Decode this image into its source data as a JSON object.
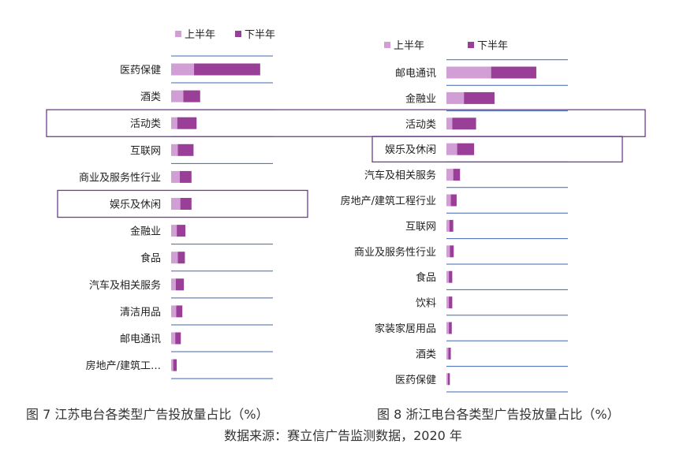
{
  "colors": {
    "first_half": "#d29ed6",
    "second_half": "#9a3f98",
    "grid": "#3f66b3",
    "highlight_box": "#6d3d8f",
    "text": "#222222"
  },
  "chart_data": [
    {
      "type": "bar",
      "orientation": "horizontal",
      "stacked": true,
      "title": "",
      "legend": [
        "上半年",
        "下半年"
      ],
      "categories": [
        "医药保健",
        "酒类",
        "活动类",
        "互联网",
        "商业及服务性行业",
        "娱乐及休闲",
        "金融业",
        "食品",
        "汽车及相关服务",
        "清洁用品",
        "邮电通讯",
        "房地产/建筑工…"
      ],
      "series": [
        {
          "name": "上半年",
          "values": [
            4.5,
            2.4,
            1.2,
            1.3,
            1.7,
            1.8,
            1.1,
            1.3,
            0.9,
            1.0,
            0.8,
            0.4
          ]
        },
        {
          "name": "下半年",
          "values": [
            13.0,
            3.3,
            3.8,
            3.1,
            2.3,
            2.2,
            1.7,
            1.4,
            1.6,
            1.2,
            1.1,
            0.7
          ]
        }
      ],
      "xlim": [
        0,
        20
      ],
      "highlight": [
        "活动类",
        "娱乐及休闲"
      ],
      "caption": "图 7  江苏电台各类型广告投放量占比（%）"
    },
    {
      "type": "bar",
      "orientation": "horizontal",
      "stacked": true,
      "title": "",
      "legend": [
        "上半年",
        "下半年"
      ],
      "categories": [
        "邮电通讯",
        "金融业",
        "活动类",
        "娱乐及休闲",
        "汽车及相关服务",
        "房地产/建筑工程行业",
        "互联网",
        "商业及服务性行业",
        "食品",
        "饮料",
        "家装家居用品",
        "酒类",
        "医药保健"
      ],
      "series": [
        {
          "name": "上半年",
          "values": [
            9.2,
            3.6,
            1.2,
            2.2,
            1.4,
            0.9,
            0.6,
            0.7,
            0.5,
            0.5,
            0.5,
            0.4,
            0.3
          ]
        },
        {
          "name": "下半年",
          "values": [
            9.3,
            6.3,
            4.9,
            3.5,
            1.4,
            1.2,
            0.8,
            0.8,
            0.7,
            0.7,
            0.6,
            0.5,
            0.4
          ]
        }
      ],
      "xlim": [
        0,
        25
      ],
      "highlight": [
        "活动类",
        "娱乐及休闲"
      ],
      "caption": "图 8  浙江电台各类型广告投放量占比（%）"
    }
  ],
  "source": "数据来源：赛立信广告监测数据，2020 年"
}
